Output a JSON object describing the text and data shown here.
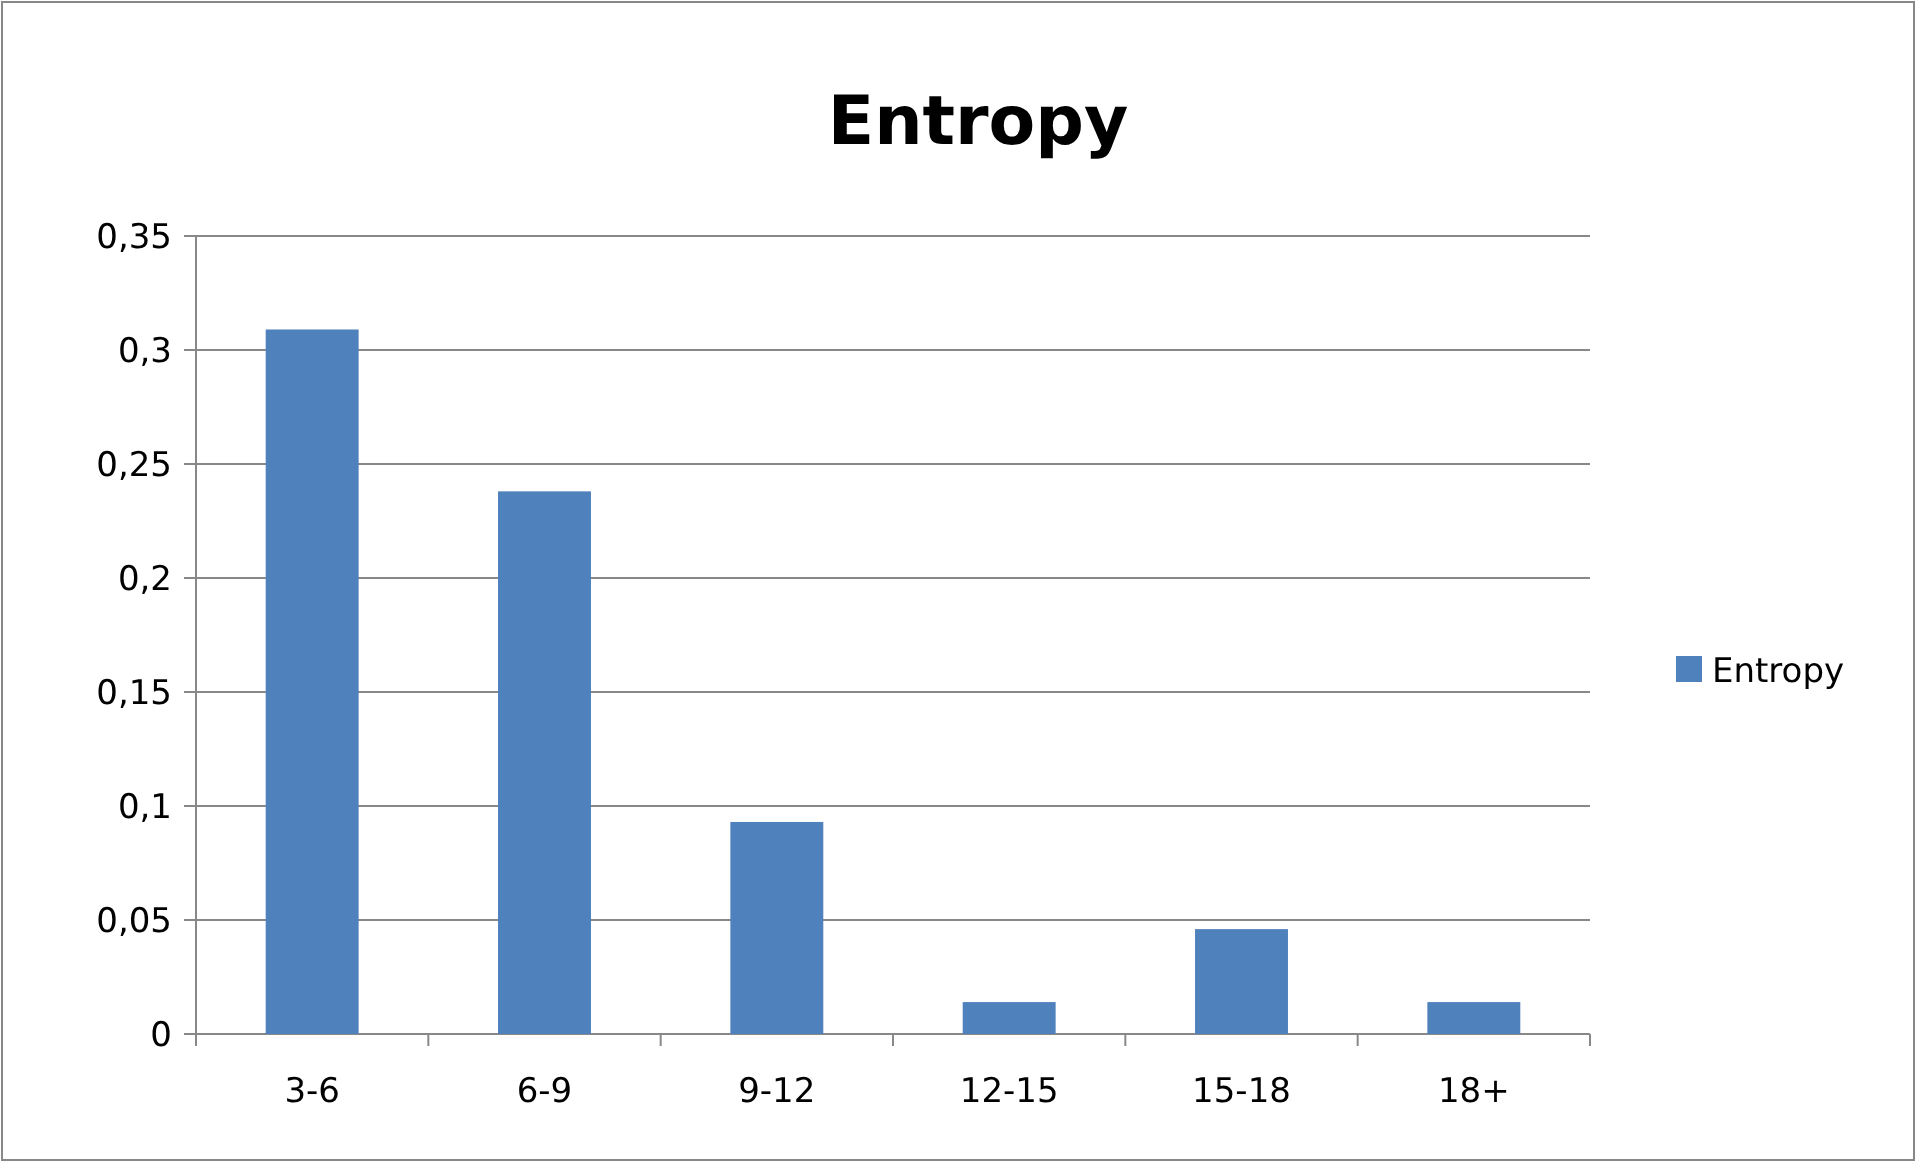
{
  "chart_data": {
    "type": "bar",
    "title": "Entropy",
    "categories": [
      "3-6",
      "6-9",
      "9-12",
      "12-15",
      "15-18",
      "18+"
    ],
    "series": [
      {
        "name": "Entropy",
        "color": "#4f81bd",
        "values": [
          0.309,
          0.238,
          0.093,
          0.014,
          0.046,
          0.014
        ]
      }
    ],
    "ylim": [
      0,
      0.35
    ],
    "yticks": [
      0,
      {
        "value": 0.05,
        "label": "0,05"
      },
      {
        "value": 0.1,
        "label": "0,1"
      },
      {
        "value": 0.15,
        "label": "0,15"
      },
      {
        "value": 0.2,
        "label": "0,2"
      },
      {
        "value": 0.25,
        "label": "0,25"
      },
      {
        "value": 0.3,
        "label": "0,3"
      },
      {
        "value": 0.35,
        "label": "0,35"
      }
    ],
    "grid": "y",
    "legend": "right"
  }
}
